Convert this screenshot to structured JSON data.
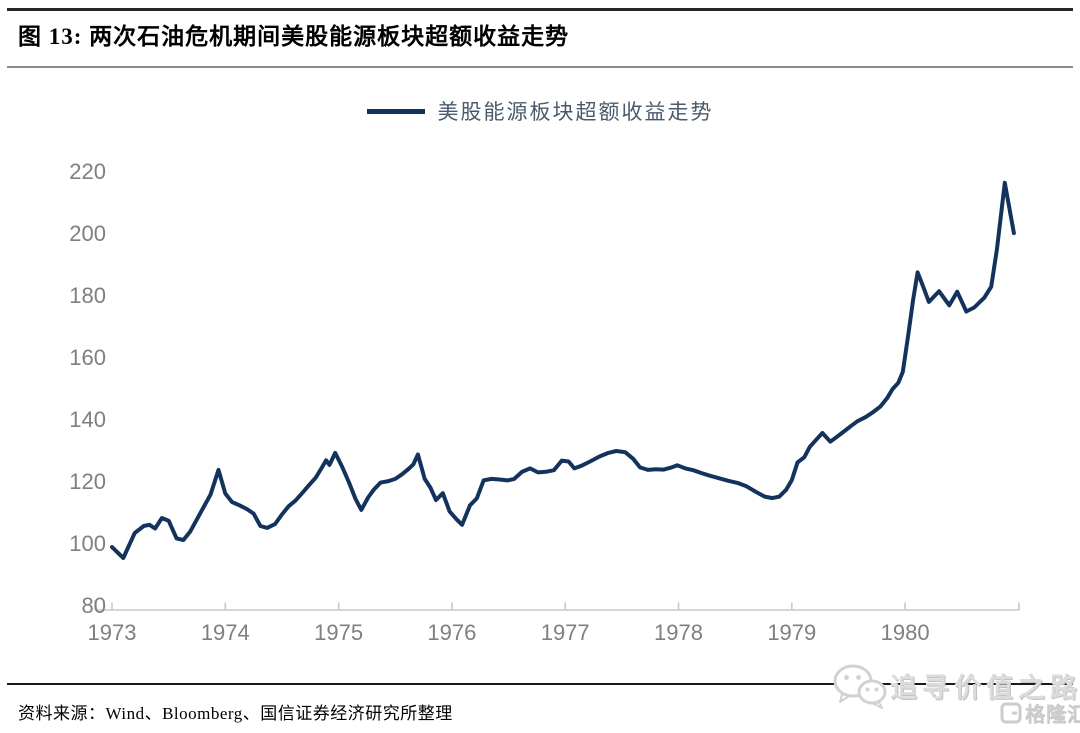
{
  "header": {
    "title": "图 13:  两次石油危机期间美股能源板块超额收益走势"
  },
  "legend": {
    "label": "美股能源板块超额收益走势"
  },
  "footer": {
    "source": "资料来源：Wind、Bloomberg、国信证券经济研究所整理"
  },
  "watermark": {
    "text": "追寻价值之路",
    "logo_text": "格隆汇"
  },
  "colors": {
    "line": "#14335C",
    "axis": "#C8C8C8",
    "tick_text": "#7F7F7F",
    "watermark": "#D6D6D6"
  },
  "chart_data": {
    "type": "line",
    "title": "两次石油危机期间美股能源板块超额收益走势",
    "legend_position": "top-center",
    "grid": false,
    "xlabel": "",
    "ylabel": "",
    "x_ticks": [
      1973,
      1974,
      1975,
      1976,
      1977,
      1978,
      1979,
      1980
    ],
    "y_ticks": [
      80,
      100,
      120,
      140,
      160,
      180,
      200,
      220
    ],
    "xlim": [
      1972.85,
      1981.0
    ],
    "ylim": [
      80,
      228
    ],
    "series": [
      {
        "name": "美股能源板块超额收益走势",
        "color": "#14335C",
        "points": [
          [
            1973.0,
            99.0
          ],
          [
            1973.1,
            95.5
          ],
          [
            1973.2,
            103.5
          ],
          [
            1973.28,
            105.8
          ],
          [
            1973.33,
            106.2
          ],
          [
            1973.38,
            105.0
          ],
          [
            1973.44,
            108.4
          ],
          [
            1973.5,
            107.5
          ],
          [
            1973.57,
            101.8
          ],
          [
            1973.63,
            101.3
          ],
          [
            1973.69,
            104.0
          ],
          [
            1973.75,
            108.0
          ],
          [
            1973.81,
            112.0
          ],
          [
            1973.87,
            116.0
          ],
          [
            1973.94,
            123.9
          ],
          [
            1974.0,
            116.3
          ],
          [
            1974.06,
            113.5
          ],
          [
            1974.13,
            112.4
          ],
          [
            1974.19,
            111.3
          ],
          [
            1974.25,
            109.8
          ],
          [
            1974.31,
            105.8
          ],
          [
            1974.37,
            105.2
          ],
          [
            1974.44,
            106.5
          ],
          [
            1974.5,
            109.5
          ],
          [
            1974.56,
            112.2
          ],
          [
            1974.62,
            114.0
          ],
          [
            1974.68,
            116.5
          ],
          [
            1974.74,
            119.0
          ],
          [
            1974.8,
            121.5
          ],
          [
            1974.85,
            124.5
          ],
          [
            1974.89,
            127.0
          ],
          [
            1974.92,
            125.5
          ],
          [
            1974.97,
            129.4
          ],
          [
            1975.03,
            125.0
          ],
          [
            1975.09,
            120.0
          ],
          [
            1975.15,
            114.5
          ],
          [
            1975.2,
            111.0
          ],
          [
            1975.26,
            115.0
          ],
          [
            1975.31,
            117.5
          ],
          [
            1975.37,
            119.8
          ],
          [
            1975.44,
            120.3
          ],
          [
            1975.5,
            121.0
          ],
          [
            1975.56,
            122.5
          ],
          [
            1975.62,
            124.3
          ],
          [
            1975.66,
            125.7
          ],
          [
            1975.7,
            128.9
          ],
          [
            1975.76,
            121.0
          ],
          [
            1975.81,
            118.2
          ],
          [
            1975.86,
            114.2
          ],
          [
            1975.92,
            116.4
          ],
          [
            1975.98,
            110.5
          ],
          [
            1976.04,
            108.0
          ],
          [
            1976.09,
            106.2
          ],
          [
            1976.16,
            112.5
          ],
          [
            1976.22,
            114.7
          ],
          [
            1976.28,
            120.5
          ],
          [
            1976.35,
            121.0
          ],
          [
            1976.42,
            120.8
          ],
          [
            1976.49,
            120.5
          ],
          [
            1976.55,
            121.0
          ],
          [
            1976.62,
            123.3
          ],
          [
            1976.69,
            124.4
          ],
          [
            1976.76,
            123.1
          ],
          [
            1976.83,
            123.3
          ],
          [
            1976.9,
            123.8
          ],
          [
            1976.97,
            126.9
          ],
          [
            1977.03,
            126.6
          ],
          [
            1977.08,
            124.4
          ],
          [
            1977.14,
            125.2
          ],
          [
            1977.22,
            126.6
          ],
          [
            1977.3,
            128.2
          ],
          [
            1977.38,
            129.4
          ],
          [
            1977.45,
            130.0
          ],
          [
            1977.53,
            129.6
          ],
          [
            1977.6,
            127.5
          ],
          [
            1977.66,
            124.7
          ],
          [
            1977.73,
            123.9
          ],
          [
            1977.8,
            124.1
          ],
          [
            1977.87,
            124.0
          ],
          [
            1977.93,
            124.6
          ],
          [
            1977.99,
            125.4
          ],
          [
            1978.06,
            124.4
          ],
          [
            1978.13,
            123.8
          ],
          [
            1978.2,
            122.9
          ],
          [
            1978.28,
            122.0
          ],
          [
            1978.36,
            121.2
          ],
          [
            1978.44,
            120.4
          ],
          [
            1978.52,
            119.7
          ],
          [
            1978.6,
            118.6
          ],
          [
            1978.68,
            116.9
          ],
          [
            1978.76,
            115.3
          ],
          [
            1978.83,
            114.8
          ],
          [
            1978.89,
            115.3
          ],
          [
            1978.95,
            117.5
          ],
          [
            1979.0,
            120.6
          ],
          [
            1979.05,
            126.3
          ],
          [
            1979.11,
            128.0
          ],
          [
            1979.16,
            131.4
          ],
          [
            1979.22,
            133.8
          ],
          [
            1979.27,
            135.8
          ],
          [
            1979.34,
            133.0
          ],
          [
            1979.4,
            134.6
          ],
          [
            1979.46,
            136.3
          ],
          [
            1979.52,
            138.0
          ],
          [
            1979.58,
            139.6
          ],
          [
            1979.65,
            140.9
          ],
          [
            1979.72,
            142.6
          ],
          [
            1979.78,
            144.3
          ],
          [
            1979.84,
            147.0
          ],
          [
            1979.89,
            150.0
          ],
          [
            1979.94,
            152.0
          ],
          [
            1979.98,
            155.5
          ],
          [
            1980.03,
            168.0
          ],
          [
            1980.07,
            178.5
          ],
          [
            1980.11,
            187.6
          ],
          [
            1980.16,
            183.0
          ],
          [
            1980.21,
            178.1
          ],
          [
            1980.3,
            181.5
          ],
          [
            1980.39,
            177.0
          ],
          [
            1980.46,
            181.4
          ],
          [
            1980.54,
            175.0
          ],
          [
            1980.61,
            176.3
          ],
          [
            1980.7,
            179.5
          ],
          [
            1980.76,
            183.0
          ],
          [
            1980.81,
            195.0
          ],
          [
            1980.88,
            216.5
          ],
          [
            1980.96,
            200.3
          ]
        ]
      }
    ]
  }
}
